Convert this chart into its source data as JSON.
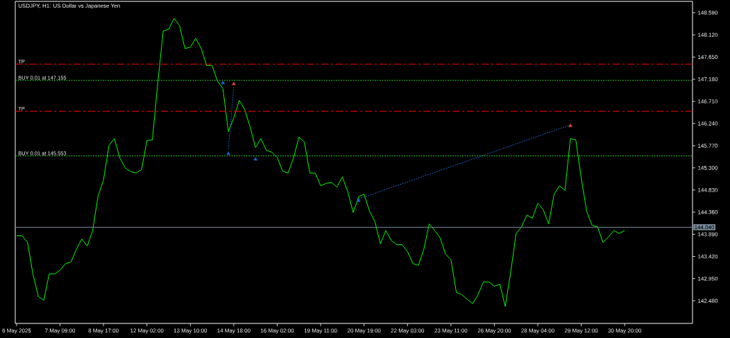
{
  "chart_data": {
    "type": "line",
    "title": "USDJPY, H1:  US Dollar vs Japanese Yen",
    "categories": [
      "6 May 2025",
      null,
      null,
      null,
      null,
      null,
      null,
      null,
      "7 May 09:00",
      null,
      null,
      null,
      null,
      null,
      null,
      null,
      "8 May 17:00",
      null,
      null,
      null,
      null,
      null,
      null,
      null,
      "12 May 02:00",
      null,
      null,
      null,
      null,
      null,
      null,
      null,
      "13 May 10:00",
      null,
      null,
      null,
      null,
      null,
      null,
      null,
      "14 May 18:00",
      null,
      null,
      null,
      null,
      null,
      null,
      null,
      "16 May 02:00",
      null,
      null,
      null,
      null,
      null,
      null,
      null,
      "19 May 11:00",
      null,
      null,
      null,
      null,
      null,
      null,
      null,
      "20 May 19:00",
      null,
      null,
      null,
      null,
      null,
      null,
      null,
      "22 May 03:00",
      null,
      null,
      null,
      null,
      null,
      null,
      null,
      "23 May 11:00",
      null,
      null,
      null,
      null,
      null,
      null,
      null,
      "26 May 20:00",
      null,
      null,
      null,
      null,
      null,
      null,
      null,
      "28 May 04:00",
      null,
      null,
      null,
      null,
      null,
      null,
      null,
      "29 May 12:00",
      null,
      null,
      null,
      null,
      null,
      null,
      null,
      "30 May 20:00",
      null,
      null,
      null,
      null,
      null,
      null,
      null,
      null,
      null,
      null,
      null,
      null
    ],
    "series": [
      {
        "color": "#00ff00",
        "values": [
          143.86,
          143.86,
          143.72,
          143.05,
          142.57,
          142.49,
          143.05,
          143.05,
          143.13,
          143.27,
          143.3,
          143.57,
          143.79,
          143.64,
          143.97,
          144.7,
          145.04,
          145.77,
          145.92,
          145.51,
          145.3,
          145.22,
          145.19,
          145.26,
          145.88,
          145.89,
          147.1,
          148.2,
          148.24,
          148.47,
          148.32,
          147.83,
          147.86,
          148.05,
          147.83,
          147.47,
          147.47,
          147.14,
          146.98,
          146.07,
          146.36,
          146.73,
          146.54,
          146.17,
          145.73,
          145.92,
          145.67,
          145.63,
          145.52,
          145.23,
          145.19,
          145.51,
          145.95,
          145.85,
          145.19,
          145.19,
          144.92,
          144.97,
          144.99,
          144.89,
          145.11,
          144.79,
          144.35,
          144.69,
          144.74,
          144.38,
          144.16,
          143.69,
          143.97,
          143.76,
          143.67,
          143.67,
          143.52,
          143.27,
          143.23,
          143.57,
          144.11,
          143.97,
          143.82,
          143.47,
          143.35,
          142.66,
          142.61,
          142.51,
          142.42,
          142.61,
          142.88,
          142.88,
          142.79,
          142.83,
          142.36,
          143.08,
          143.91,
          144.05,
          144.3,
          144.23,
          144.55,
          144.41,
          144.11,
          144.74,
          144.92,
          144.82,
          145.92,
          145.89,
          145.08,
          144.38,
          144.08,
          144.05,
          143.72,
          143.83,
          143.97,
          143.91,
          143.97,
          null,
          null,
          null,
          null,
          null,
          null,
          null,
          null,
          null,
          null,
          null,
          null
        ]
      },
      {
        "type": "line",
        "color": "#1e64c8",
        "line_style": "dotted",
        "values": [
          null,
          null,
          null,
          null,
          null,
          null,
          null,
          null,
          null,
          null,
          null,
          null,
          null,
          null,
          null,
          null,
          null,
          null,
          null,
          null,
          null,
          null,
          null,
          null,
          null,
          null,
          null,
          null,
          null,
          null,
          null,
          null,
          null,
          null,
          null,
          null,
          null,
          null,
          null,
          145.7,
          147.02,
          null,
          null,
          null,
          null,
          null,
          null,
          null,
          null,
          null,
          null,
          null,
          null,
          null,
          null,
          null,
          null,
          null,
          null,
          null,
          null,
          null,
          null,
          null,
          null,
          null,
          null,
          null,
          null,
          null,
          null,
          null,
          null,
          null,
          null,
          null,
          null,
          null,
          null,
          null,
          null,
          null,
          null,
          null,
          null,
          null,
          null,
          null,
          null,
          null,
          null,
          null,
          null,
          null,
          null,
          null,
          null,
          null,
          null,
          null,
          null,
          null,
          null,
          null,
          null,
          null,
          null,
          null,
          null,
          null,
          null,
          null,
          null,
          null,
          null,
          null,
          null,
          null,
          null,
          null,
          null,
          null,
          null,
          null,
          null
        ]
      },
      {
        "type": "line",
        "color": "#1e64c8",
        "line_style": "dotted",
        "values": [
          null,
          null,
          null,
          null,
          null,
          null,
          null,
          null,
          null,
          null,
          null,
          null,
          null,
          null,
          null,
          null,
          null,
          null,
          null,
          null,
          null,
          null,
          null,
          null,
          null,
          null,
          null,
          null,
          null,
          null,
          null,
          null,
          null,
          null,
          null,
          null,
          null,
          null,
          null,
          null,
          null,
          null,
          null,
          null,
          null,
          null,
          null,
          null,
          null,
          null,
          null,
          null,
          null,
          null,
          null,
          null,
          null,
          null,
          null,
          null,
          null,
          null,
          null,
          144.64,
          null,
          null,
          null,
          null,
          null,
          null,
          null,
          null,
          null,
          null,
          null,
          null,
          null,
          null,
          null,
          null,
          null,
          null,
          null,
          null,
          null,
          null,
          null,
          null,
          null,
          null,
          null,
          null,
          null,
          null,
          null,
          null,
          null,
          null,
          null,
          null,
          null,
          null,
          146.21,
          null,
          null,
          null,
          null,
          null,
          null,
          null,
          null,
          null,
          null,
          null,
          null,
          null,
          null,
          null,
          null,
          null,
          null,
          null,
          null,
          null,
          null
        ]
      },
      {
        "type": "scatter",
        "color": "#1e64c8",
        "marker": "triangle",
        "values": [
          null,
          null,
          null,
          null,
          null,
          null,
          null,
          null,
          null,
          null,
          null,
          null,
          null,
          null,
          null,
          null,
          null,
          null,
          null,
          null,
          null,
          null,
          null,
          null,
          null,
          null,
          null,
          null,
          null,
          null,
          null,
          null,
          null,
          null,
          null,
          null,
          null,
          null,
          147.1,
          145.6,
          null,
          null,
          null,
          null,
          145.48,
          null,
          null,
          null,
          null,
          null,
          null,
          null,
          null,
          null,
          null,
          null,
          null,
          null,
          null,
          null,
          null,
          null,
          null,
          144.6,
          null,
          null,
          null,
          null,
          null,
          null,
          null,
          null,
          null,
          null,
          null,
          null,
          null,
          null,
          null,
          null,
          null,
          null,
          null,
          null,
          null,
          null,
          null,
          null,
          null,
          null,
          null,
          null,
          null,
          null,
          null,
          null,
          null,
          null,
          null,
          null,
          null,
          null,
          null,
          null,
          null,
          null,
          null,
          null,
          null,
          null,
          null,
          null,
          null,
          null,
          null,
          null,
          null,
          null,
          null,
          null,
          null,
          null,
          null,
          null,
          null
        ]
      },
      {
        "type": "scatter",
        "color": "#e0462c",
        "marker": "triangle",
        "values": [
          null,
          null,
          null,
          null,
          null,
          null,
          null,
          null,
          null,
          null,
          null,
          null,
          null,
          null,
          null,
          null,
          null,
          null,
          null,
          null,
          null,
          null,
          null,
          null,
          null,
          null,
          null,
          null,
          null,
          null,
          null,
          null,
          null,
          null,
          null,
          null,
          null,
          null,
          null,
          null,
          147.08,
          null,
          null,
          null,
          null,
          null,
          null,
          null,
          null,
          null,
          null,
          null,
          null,
          null,
          null,
          null,
          null,
          null,
          null,
          null,
          null,
          null,
          null,
          null,
          null,
          null,
          null,
          null,
          null,
          null,
          null,
          null,
          null,
          null,
          null,
          null,
          null,
          null,
          null,
          null,
          null,
          null,
          null,
          null,
          null,
          null,
          null,
          null,
          null,
          null,
          null,
          null,
          null,
          null,
          null,
          null,
          null,
          null,
          null,
          null,
          null,
          null,
          146.19,
          null,
          null,
          null,
          null,
          null,
          null,
          null,
          null,
          null,
          null,
          null,
          null,
          null,
          null,
          null,
          null,
          null,
          null,
          null,
          null,
          null,
          null
        ]
      }
    ],
    "ylim": [
      142.0,
      148.83
    ],
    "yticks": [
      {
        "value": 142.48,
        "label": "142.480"
      },
      {
        "value": 142.95,
        "label": "142.950"
      },
      {
        "value": 143.42,
        "label": "143.420"
      },
      {
        "value": 143.89,
        "label": "143.890"
      },
      {
        "value": 144.36,
        "label": "144.360"
      },
      {
        "value": 144.83,
        "label": "144.830"
      },
      {
        "value": 145.3,
        "label": "145.300"
      },
      {
        "value": 145.77,
        "label": "145.770"
      },
      {
        "value": 146.24,
        "label": "146.240"
      },
      {
        "value": 146.71,
        "label": "146.710"
      },
      {
        "value": 147.18,
        "label": "147.180"
      },
      {
        "value": 147.65,
        "label": "147.650"
      },
      {
        "value": 148.12,
        "label": "148.120"
      },
      {
        "value": 148.59,
        "label": "148.590"
      }
    ],
    "ref_lines": [
      {
        "axis": "y",
        "value": 147.5,
        "label": "TP",
        "color": "#ff0000",
        "line_style": "dashed"
      },
      {
        "axis": "y",
        "value": 147.155,
        "label": "BUY 0.01 at 147.155",
        "color": "#32c832",
        "line_style": "dotted"
      },
      {
        "axis": "y",
        "value": 146.5,
        "label": "TP",
        "color": "#ff0000",
        "line_style": "dashed"
      },
      {
        "axis": "y",
        "value": 145.553,
        "label": "BUY 0.01 at 145.553",
        "color": "#32c832",
        "line_style": "dotted"
      },
      {
        "axis": "y",
        "value": 144.04,
        "label": "144.040",
        "color": "#778899",
        "line_style": "solid"
      }
    ]
  }
}
